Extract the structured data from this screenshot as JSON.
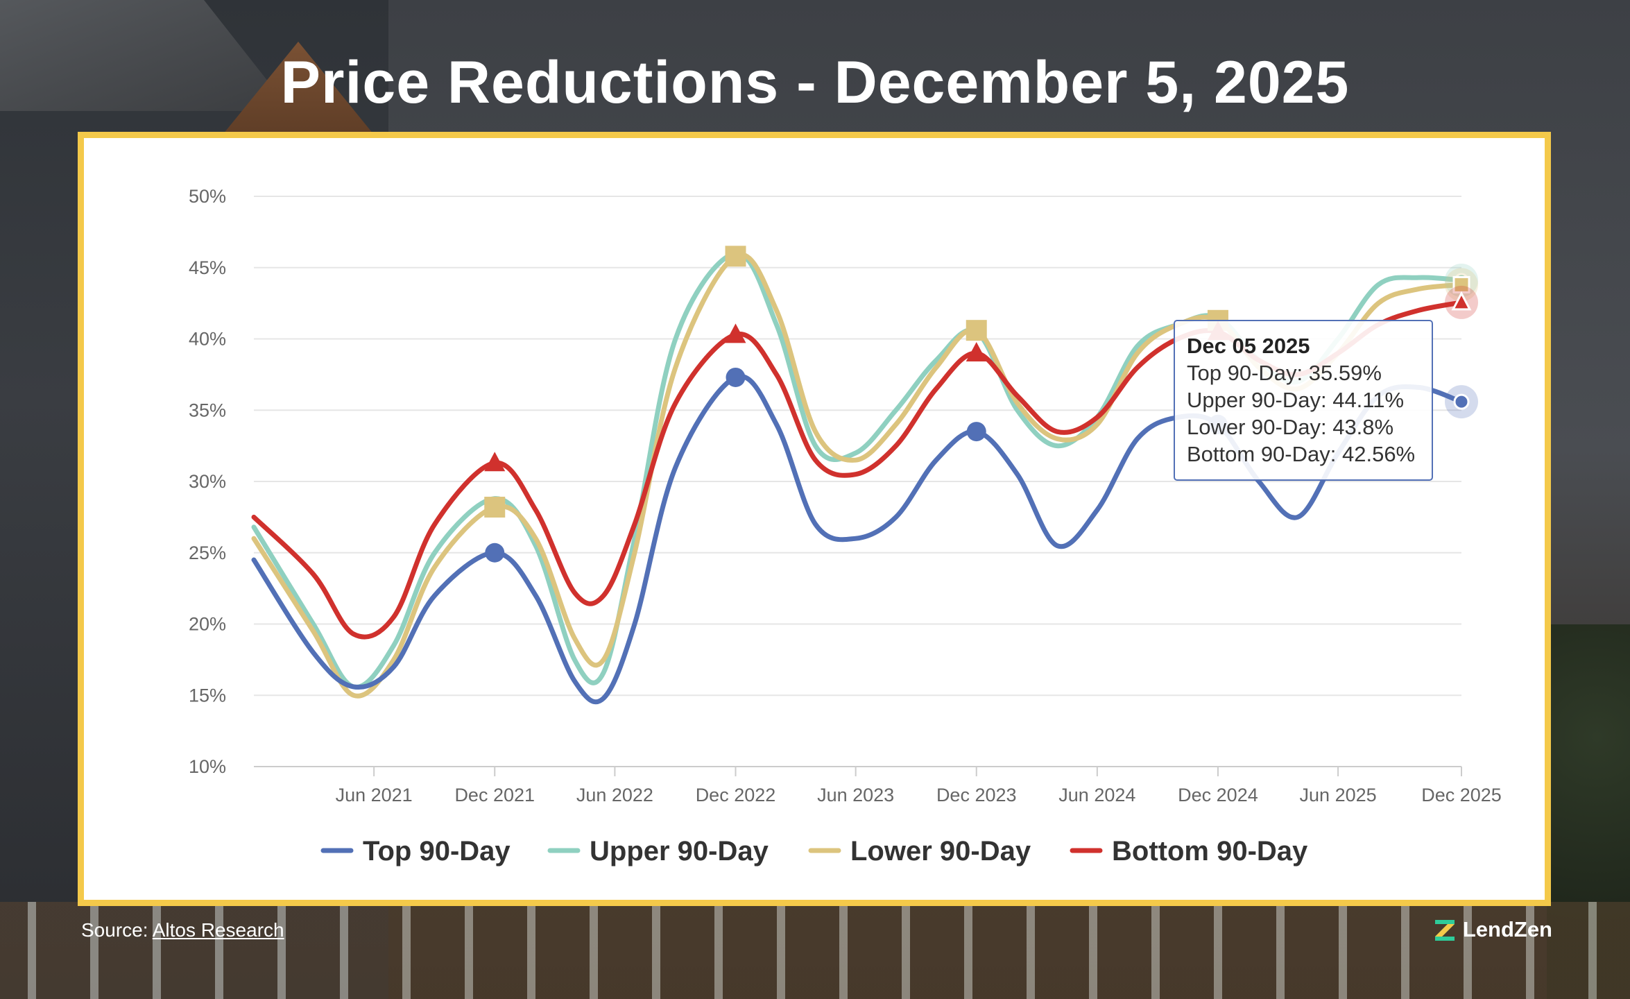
{
  "title": "Price Reductions - December 5, 2025",
  "source": {
    "prefix": "Source:",
    "link_text": "Altos Research"
  },
  "brand": {
    "name": "LendZen"
  },
  "colors": {
    "top": "#5270b6",
    "upper": "#8fd0c0",
    "lower": "#dcc47e",
    "bottom": "#d0312d",
    "frame": "#f4c94a"
  },
  "chart_data": {
    "type": "line",
    "title": "",
    "xlabel": "",
    "ylabel": "",
    "ylim": [
      10,
      50
    ],
    "yticks": [
      10,
      15,
      20,
      25,
      30,
      35,
      40,
      45,
      50
    ],
    "ytick_labels": [
      "10%",
      "15%",
      "20%",
      "25%",
      "30%",
      "35%",
      "40%",
      "45%",
      "50%"
    ],
    "xlim": [
      "2020-12-01",
      "2025-12-05"
    ],
    "xticks": [
      {
        "date": "2021-06-01",
        "label": "Jun 2021"
      },
      {
        "date": "2021-12-01",
        "label": "Dec 2021"
      },
      {
        "date": "2022-06-01",
        "label": "Jun 2022"
      },
      {
        "date": "2022-12-01",
        "label": "Dec 2022"
      },
      {
        "date": "2023-06-01",
        "label": "Jun 2023"
      },
      {
        "date": "2023-12-01",
        "label": "Dec 2023"
      },
      {
        "date": "2024-06-01",
        "label": "Jun 2024"
      },
      {
        "date": "2024-12-01",
        "label": "Dec 2024"
      },
      {
        "date": "2025-06-01",
        "label": "Jun 2025"
      },
      {
        "date": "2025-12-05",
        "label": "Dec 2025"
      }
    ],
    "x": [
      "2020-12-01",
      "2021-03-01",
      "2021-05-01",
      "2021-07-01",
      "2021-09-01",
      "2021-12-01",
      "2022-02-01",
      "2022-04-01",
      "2022-05-15",
      "2022-07-01",
      "2022-09-01",
      "2022-12-01",
      "2023-02-01",
      "2023-04-01",
      "2023-06-01",
      "2023-08-01",
      "2023-10-01",
      "2023-12-01",
      "2024-02-01",
      "2024-04-01",
      "2024-06-01",
      "2024-08-01",
      "2024-10-01",
      "2024-12-01",
      "2025-02-01",
      "2025-04-01",
      "2025-06-01",
      "2025-08-01",
      "2025-10-01",
      "2025-12-05"
    ],
    "series": [
      {
        "name": "Top 90-Day",
        "marker": "circle",
        "values": [
          24.5,
          18.0,
          15.6,
          17.0,
          22.0,
          25.0,
          22.0,
          16.0,
          14.8,
          20.0,
          31.0,
          37.3,
          34.0,
          27.0,
          26.0,
          27.5,
          31.5,
          33.5,
          30.5,
          25.5,
          28.0,
          33.0,
          34.5,
          34.0,
          30.0,
          27.5,
          32.0,
          36.0,
          36.6,
          35.59
        ]
      },
      {
        "name": "Upper 90-Day",
        "marker": "none",
        "values": [
          26.8,
          20.0,
          15.6,
          18.5,
          25.0,
          28.8,
          25.5,
          17.5,
          16.6,
          26.0,
          40.0,
          46.0,
          41.0,
          32.5,
          32.0,
          35.0,
          38.5,
          40.5,
          35.0,
          32.5,
          34.5,
          39.5,
          41.0,
          41.5,
          38.5,
          37.0,
          40.0,
          43.8,
          44.3,
          44.11
        ]
      },
      {
        "name": "Lower 90-Day",
        "marker": "square",
        "values": [
          26.0,
          19.5,
          15.0,
          17.5,
          24.0,
          28.2,
          26.0,
          19.0,
          17.5,
          25.0,
          38.0,
          45.8,
          42.0,
          33.5,
          31.5,
          34.0,
          38.0,
          40.6,
          35.5,
          33.0,
          34.0,
          39.0,
          41.0,
          41.3,
          38.0,
          36.5,
          39.0,
          42.5,
          43.5,
          43.8
        ]
      },
      {
        "name": "Bottom 90-Day",
        "marker": "triangle",
        "values": [
          27.5,
          23.5,
          19.3,
          20.5,
          27.0,
          31.3,
          28.0,
          22.2,
          22.0,
          27.0,
          35.5,
          40.3,
          37.5,
          31.5,
          30.5,
          32.5,
          36.5,
          39.0,
          36.0,
          33.5,
          34.5,
          38.0,
          40.0,
          40.5,
          38.5,
          37.5,
          39.0,
          41.0,
          42.0,
          42.56
        ]
      }
    ],
    "legend": {
      "position": "bottom"
    },
    "grid": true,
    "tooltip": {
      "date": "Dec 05 2025",
      "lines": [
        "Top 90-Day: 35.59%",
        "Upper 90-Day: 44.11%",
        "Lower 90-Day: 43.8%",
        "Bottom 90-Day: 42.56%"
      ]
    }
  }
}
